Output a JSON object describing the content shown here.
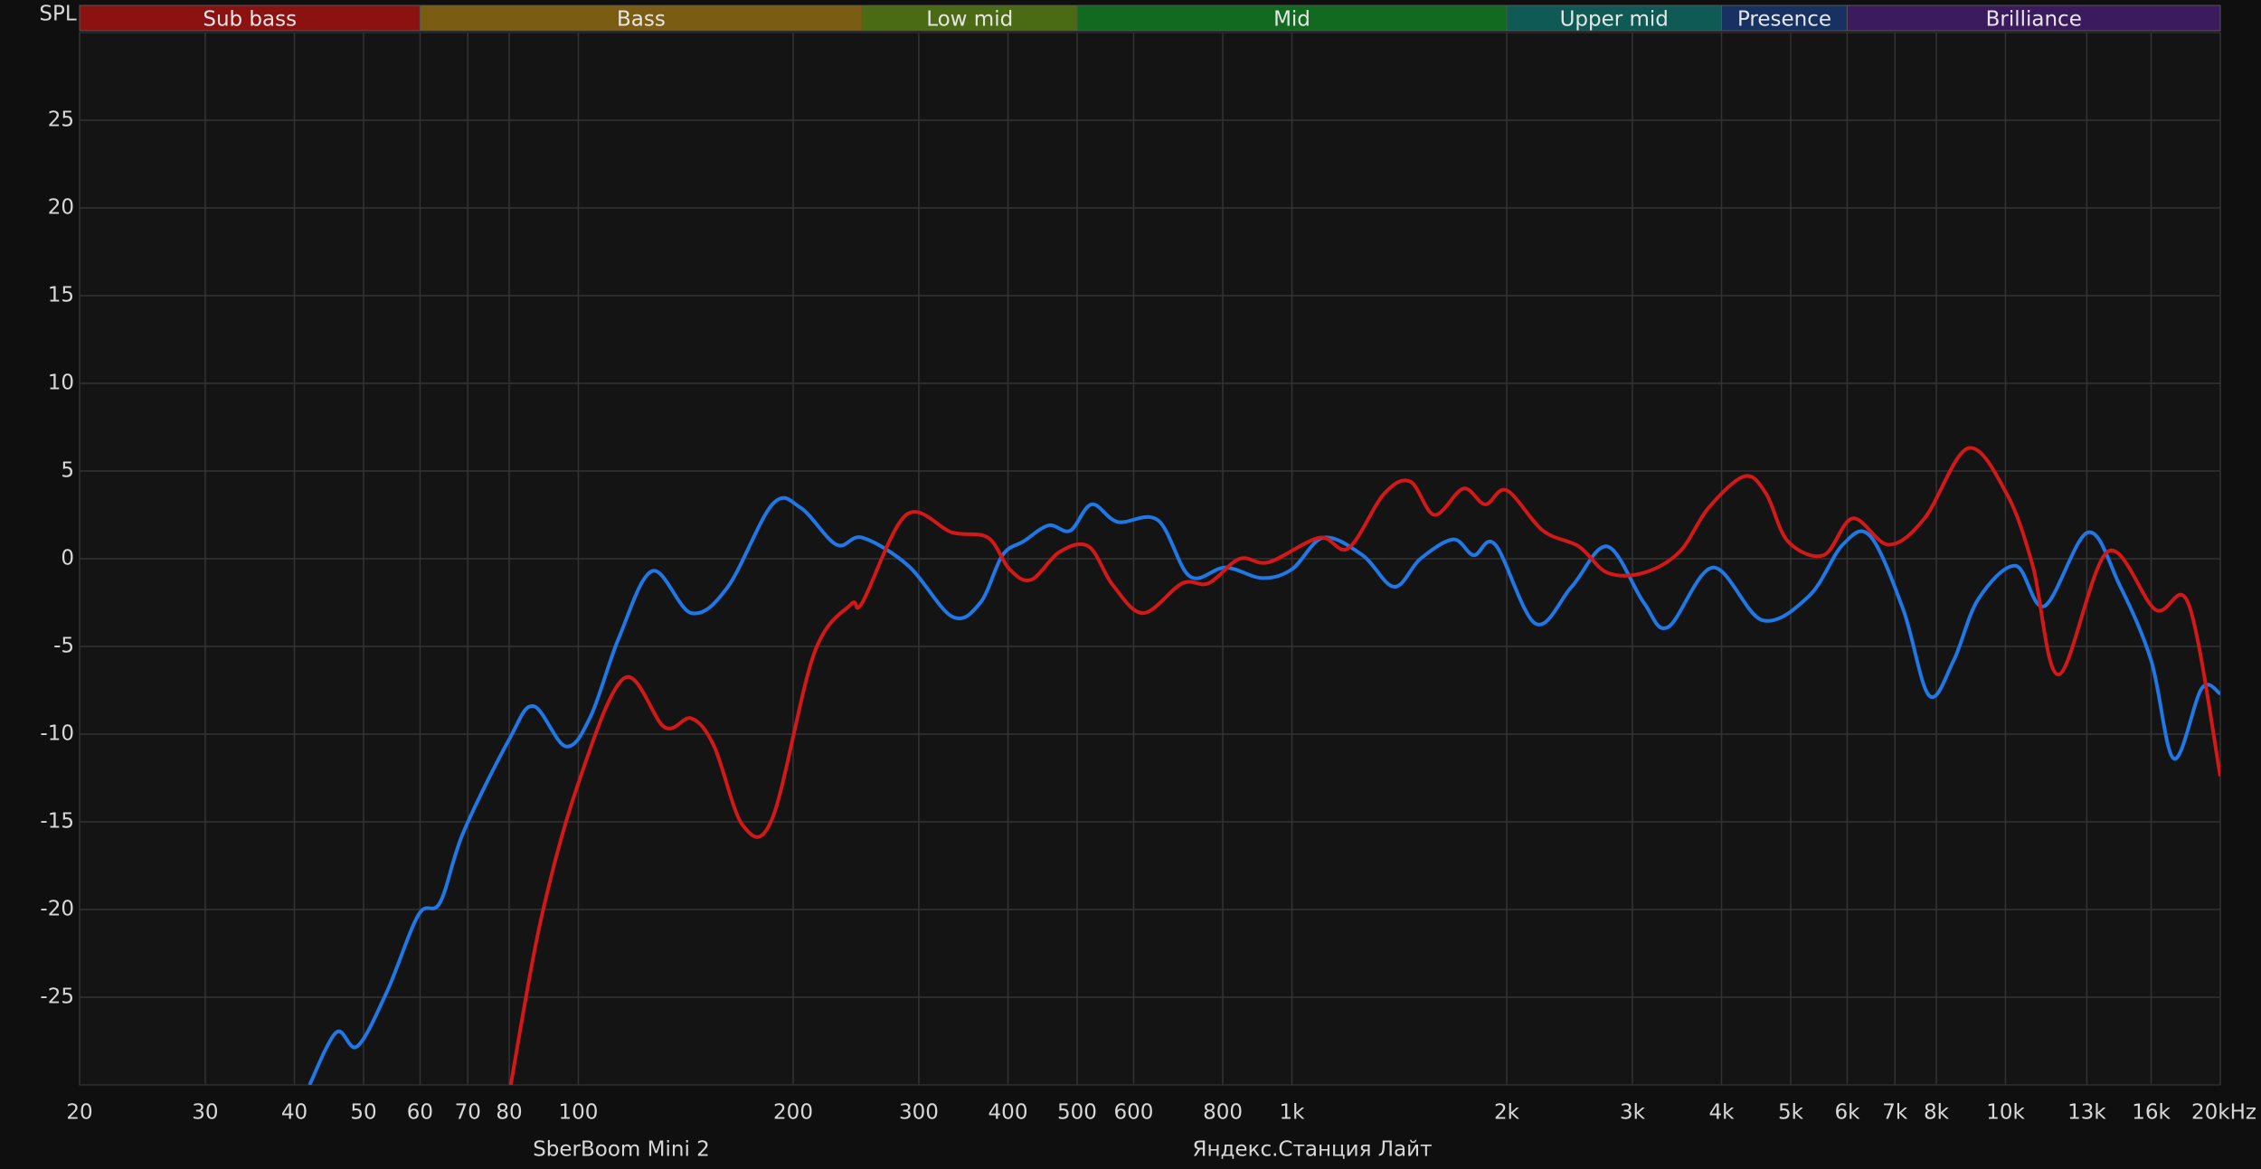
{
  "chart_data": {
    "type": "line",
    "y_label": "SPL",
    "log_x": true,
    "grid": true,
    "legend": "bottom",
    "xlim": [
      20,
      20000
    ],
    "ylim": [
      -30,
      30
    ],
    "yticks": [
      -25,
      -20,
      -15,
      -10,
      -5,
      0,
      5,
      10,
      15,
      20,
      25
    ],
    "xticks": [
      20,
      30,
      40,
      50,
      60,
      70,
      80,
      100,
      200,
      300,
      400,
      500,
      600,
      800,
      {
        "value": 1000,
        "label": "1k"
      },
      {
        "value": 2000,
        "label": "2k"
      },
      {
        "value": 3000,
        "label": "3k"
      },
      {
        "value": 4000,
        "label": "4k"
      },
      {
        "value": 5000,
        "label": "5k"
      },
      {
        "value": 6000,
        "label": "6k"
      },
      {
        "value": 7000,
        "label": "7k"
      },
      {
        "value": 8000,
        "label": "8k"
      },
      {
        "value": 10000,
        "label": "10k"
      },
      {
        "value": 13000,
        "label": "13k",
        "color": "#7a7a7a"
      },
      {
        "value": 16000,
        "label": "16k",
        "color": "#7a7a7a"
      },
      {
        "value": 20000,
        "label": "20kHz"
      }
    ],
    "bands": [
      {
        "name": "Sub bass",
        "start": 20,
        "end": 60,
        "color": "#8c1212"
      },
      {
        "name": "Bass",
        "start": 60,
        "end": 250,
        "color": "#7a5c12"
      },
      {
        "name": "Low mid",
        "start": 250,
        "end": 500,
        "color": "#4b6a14"
      },
      {
        "name": "Mid",
        "start": 500,
        "end": 2000,
        "color": "#116a20"
      },
      {
        "name": "Upper mid",
        "start": 2000,
        "end": 4000,
        "color": "#0f5a54"
      },
      {
        "name": "Presence",
        "start": 4000,
        "end": 6000,
        "color": "#173262"
      },
      {
        "name": "Brilliance",
        "start": 6000,
        "end": 20000,
        "color": "#3b1b5e"
      }
    ],
    "series": [
      {
        "name": "SberBoom Mini 2",
        "color": "#1f78e6",
        "x": [
          42,
          45.8,
          49,
          53.9,
          59.7,
          64,
          69,
          80,
          86.5,
          96,
          104,
          114,
          127,
          144,
          162,
          187,
          205,
          230,
          250,
          290,
          334,
          366,
          393,
          421,
          456,
          489,
          524,
          570,
          649,
          719,
          807,
          908,
          1000,
          1107,
          1256,
          1391,
          1514,
          1683,
          1798,
          1928,
          2194,
          2466,
          2768,
          3112,
          3366,
          3890,
          4560,
          5312,
          5914,
          6460,
          7190,
          7816,
          8460,
          9160,
          10330,
          11340,
          13040,
          14450,
          16000,
          17220,
          18830,
          20000
        ],
        "values": [
          -30,
          -27,
          -27.8,
          -24.7,
          -20.3,
          -19.6,
          -15.6,
          -10.3,
          -8.4,
          -10.7,
          -9,
          -4.5,
          -0.7,
          -3.1,
          -1.6,
          3.1,
          2.9,
          0.8,
          1.2,
          -0.4,
          -3.3,
          -2.5,
          0.2,
          1,
          1.9,
          1.6,
          3.1,
          2.1,
          2.2,
          -1,
          -0.5,
          -1.1,
          -0.6,
          1.2,
          0.2,
          -1.6,
          0,
          1.1,
          0.2,
          0.8,
          -3.7,
          -1.6,
          0.7,
          -2.5,
          -3.9,
          -0.5,
          -3.5,
          -2.1,
          0.8,
          1.3,
          -2.9,
          -7.8,
          -5.8,
          -2.3,
          -0.4,
          -2.7,
          1.5,
          -1.5,
          -5.8,
          -11.4,
          -7.4,
          -7.7
        ]
      },
      {
        "name": "Яндекс.Станция Лайт",
        "color": "#d41818",
        "x": [
          80.4,
          88.6,
          100,
          116,
          132,
          144,
          155,
          170,
          187,
          214,
          241,
          250,
          288,
          334,
          375,
          402,
          431,
          473,
          519,
          561,
          619,
          702,
          764,
          845,
          928,
          1093,
          1200,
          1346,
          1465,
          1584,
          1739,
          1866,
          2000,
          2248,
          2524,
          2768,
          3112,
          3494,
          3836,
          4308,
          4620,
          4954,
          5560,
          6108,
          6858,
          7700,
          8860,
          10040,
          10920,
          11880,
          13900,
          16220,
          18060,
          20000
        ],
        "values": [
          -30,
          -20.6,
          -12.8,
          -6.8,
          -9.6,
          -9.1,
          -10.7,
          -15.2,
          -14.8,
          -5.4,
          -2.6,
          -2.5,
          2.5,
          1.5,
          1.2,
          -0.6,
          -1.2,
          0.4,
          0.7,
          -1.5,
          -3.1,
          -1.4,
          -1.4,
          0,
          -0.2,
          1.2,
          0.6,
          3.7,
          4.4,
          2.5,
          4,
          3.1,
          3.9,
          1.6,
          0.7,
          -0.8,
          -0.8,
          0.4,
          2.9,
          4.7,
          3.7,
          1,
          0.2,
          2.3,
          0.8,
          2.3,
          6.3,
          3.7,
          -0.4,
          -6.6,
          0.4,
          -2.9,
          -2.6,
          -12.4
        ]
      }
    ]
  }
}
